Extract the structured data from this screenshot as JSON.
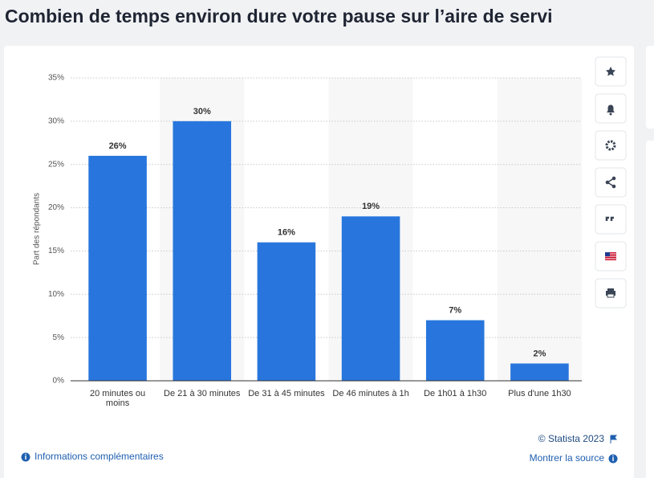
{
  "header": {
    "title": "Combien de temps environ dure votre pause sur l’aire de servi"
  },
  "chart_data": {
    "type": "bar",
    "y_label": "Part des répondants",
    "categories": [
      "20 minutes ou moins",
      "De 21 à 30 minutes",
      "De 31 à 45 minutes",
      "De 46 minutes à 1h",
      "De 1h01 à 1h30",
      "Plus d'une 1h30"
    ],
    "values": [
      26,
      30,
      16,
      19,
      7,
      2
    ],
    "value_labels": [
      "26%",
      "30%",
      "16%",
      "19%",
      "7%",
      "2%"
    ],
    "color": "#2876dd",
    "ylim": [
      0,
      35
    ],
    "yticks": [
      {
        "value": 0,
        "label": "0%"
      },
      {
        "value": 5,
        "label": "5%"
      },
      {
        "value": 10,
        "label": "10%"
      },
      {
        "value": 15,
        "label": "15%"
      },
      {
        "value": 20,
        "label": "20%"
      },
      {
        "value": 25,
        "label": "25%"
      },
      {
        "value": 30,
        "label": "30%"
      },
      {
        "value": 35,
        "label": "35%"
      }
    ],
    "grid": true
  },
  "footer": {
    "copyright": "© Statista 2023",
    "source": "Montrer la source",
    "info": "Informations complémentaires"
  }
}
